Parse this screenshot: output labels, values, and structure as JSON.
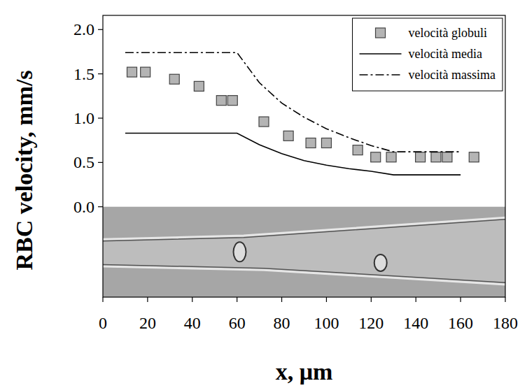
{
  "chart_data": {
    "type": "scatter",
    "x_label": "x, μm",
    "y_label": "RBC velocity, mm/s",
    "xlim": [
      0,
      180
    ],
    "ylim": [
      -1.02,
      2.16
    ],
    "xticks": [
      0,
      20,
      40,
      60,
      80,
      100,
      120,
      140,
      160,
      180
    ],
    "yticks": [
      {
        "value": 0,
        "label": "0.0"
      },
      {
        "value": 0.5,
        "label": "0.5"
      },
      {
        "value": 1,
        "label": "1.0"
      },
      {
        "value": 1.5,
        "label": "1.5"
      },
      {
        "value": 2,
        "label": "2.0"
      }
    ],
    "grid": false,
    "legend": "top-right",
    "series": [
      {
        "name": "velocità globuli",
        "type": "scatter",
        "marker": "square",
        "color": "#b4b4b4",
        "x": [
          13,
          19,
          32,
          43,
          53,
          58,
          72,
          83,
          93,
          100,
          114,
          122,
          129,
          142,
          149,
          154,
          166
        ],
        "values": [
          1.52,
          1.52,
          1.44,
          1.36,
          1.2,
          1.2,
          0.96,
          0.8,
          0.72,
          0.72,
          0.64,
          0.56,
          0.56,
          0.56,
          0.56,
          0.56,
          0.56
        ]
      },
      {
        "name": "velocità media",
        "type": "line",
        "line_style": "solid",
        "color": "#000000",
        "x": [
          10,
          60,
          70,
          80,
          90,
          100,
          110,
          120,
          130,
          160
        ],
        "values": [
          0.83,
          0.83,
          0.7,
          0.6,
          0.52,
          0.47,
          0.43,
          0.4,
          0.36,
          0.36
        ]
      },
      {
        "name": "velocità massima",
        "type": "line",
        "line_style": "dashdot",
        "color": "#000000",
        "x": [
          10,
          60,
          70,
          80,
          90,
          100,
          110,
          120,
          130,
          160
        ],
        "values": [
          1.74,
          1.74,
          1.4,
          1.17,
          1.01,
          0.88,
          0.78,
          0.69,
          0.62,
          0.62
        ]
      }
    ]
  }
}
